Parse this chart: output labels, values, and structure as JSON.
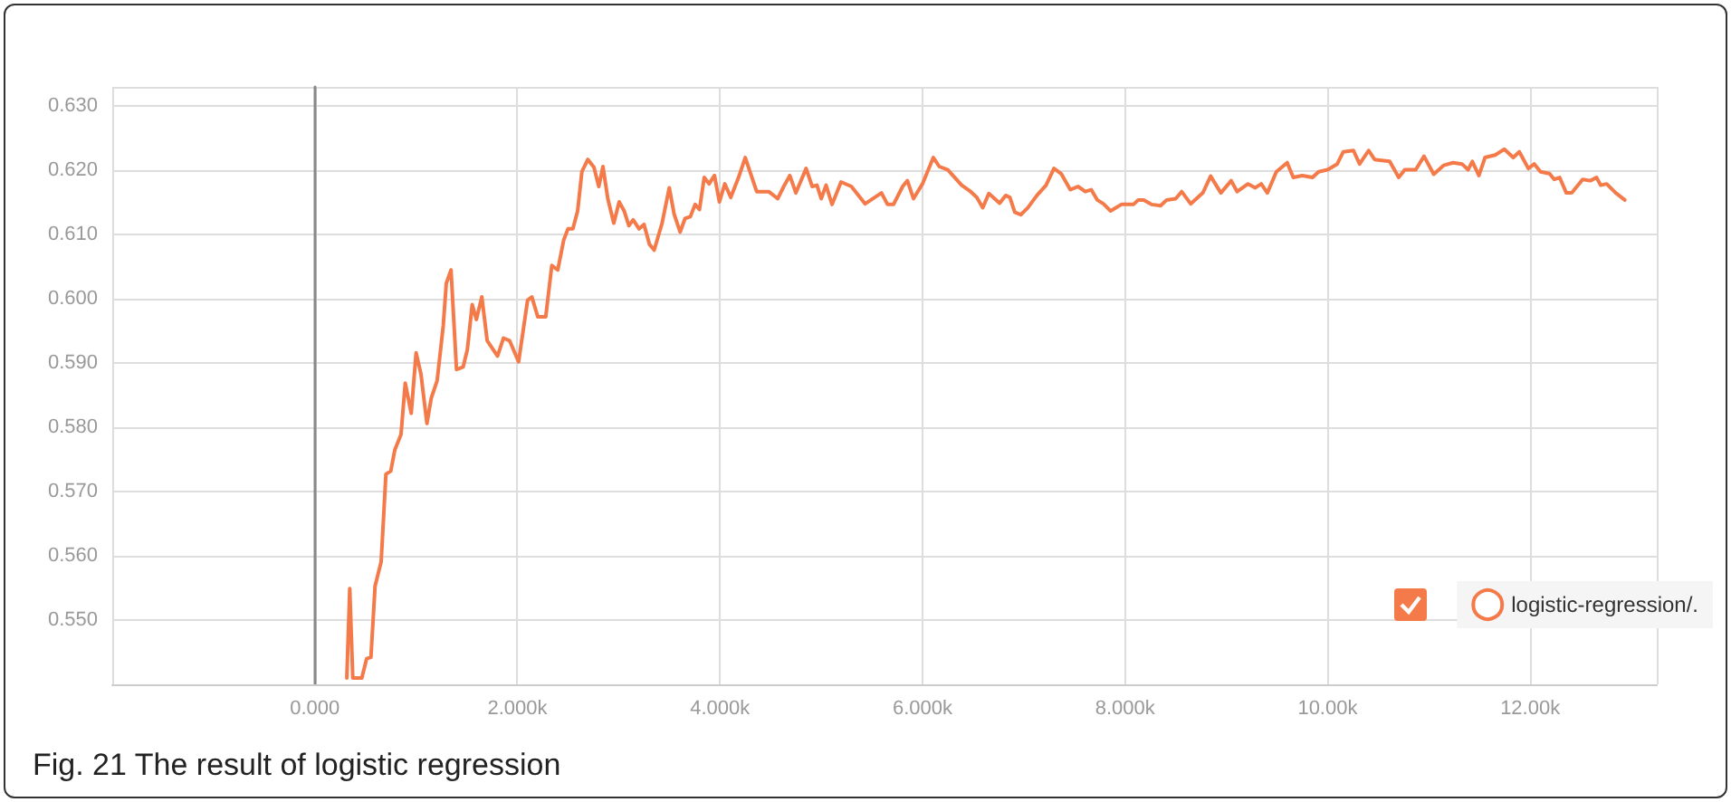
{
  "chart_data": {
    "type": "line",
    "annotations": [
      "Fig. 21 The result of logistic regression"
    ],
    "xlim": [
      -2000,
      13250
    ],
    "ylim": [
      0.54,
      0.633
    ],
    "xticks": [
      {
        "value": 0,
        "label": "0.000"
      },
      {
        "value": 2000,
        "label": "2.000k"
      },
      {
        "value": 4000,
        "label": "4.000k"
      },
      {
        "value": 6000,
        "label": "6.000k"
      },
      {
        "value": 8000,
        "label": "8.000k"
      },
      {
        "value": 10000,
        "label": "10.00k"
      },
      {
        "value": 12000,
        "label": "12.00k"
      }
    ],
    "yticks": [
      {
        "value": 0.55,
        "label": "0.550"
      },
      {
        "value": 0.56,
        "label": "0.560"
      },
      {
        "value": 0.57,
        "label": "0.570"
      },
      {
        "value": 0.58,
        "label": "0.580"
      },
      {
        "value": 0.59,
        "label": "0.590"
      },
      {
        "value": 0.6,
        "label": "0.600"
      },
      {
        "value": 0.61,
        "label": "0.610"
      },
      {
        "value": 0.62,
        "label": "0.620"
      },
      {
        "value": 0.63,
        "label": "0.630"
      }
    ],
    "grid": true,
    "legend": "bottom right",
    "marker": "none",
    "line_style": "solid",
    "series": [
      {
        "name": "logistic-regression/.",
        "color": "#f47a4a",
        "x": [
          316,
          345,
          375,
          464,
          512,
          554,
          595,
          655,
          702,
          750,
          790,
          851,
          893,
          952,
          1000,
          1048,
          1107,
          1149,
          1208,
          1268,
          1298,
          1345,
          1399,
          1464,
          1506,
          1554,
          1595,
          1649,
          1702,
          1804,
          1863,
          1923,
          2012,
          2101,
          2143,
          2202,
          2280,
          2340,
          2399,
          2458,
          2500,
          2548,
          2595,
          2637,
          2696,
          2756,
          2804,
          2845,
          2893,
          2952,
          3005,
          3054,
          3101,
          3143,
          3202,
          3250,
          3304,
          3351,
          3429,
          3500,
          3548,
          3607,
          3655,
          3708,
          3755,
          3798,
          3845,
          3893,
          3946,
          3995,
          4048,
          4107,
          4184,
          4250,
          4363,
          4482,
          4571,
          4630,
          4690,
          4750,
          4851,
          4911,
          4958,
          5000,
          5048,
          5107,
          5196,
          5298,
          5434,
          5595,
          5655,
          5714,
          5804,
          5851,
          5911,
          6000,
          6107,
          6166,
          6250,
          6387,
          6476,
          6536,
          6595,
          6655,
          6762,
          6821,
          6863,
          6911,
          6970,
          7041,
          7130,
          7220,
          7298,
          7369,
          7459,
          7536,
          7607,
          7666,
          7726,
          7786,
          7857,
          7964,
          8083,
          8130,
          8184,
          8262,
          8351,
          8411,
          8500,
          8559,
          8648,
          8768,
          8845,
          8946,
          9048,
          9107,
          9214,
          9286,
          9345,
          9405,
          9494,
          9601,
          9661,
          9750,
          9851,
          9911,
          10000,
          10095,
          10155,
          10255,
          10316,
          10405,
          10464,
          10613,
          10702,
          10762,
          10870,
          10952,
          11048,
          11148,
          11238,
          11327,
          11387,
          11429,
          11494,
          11554,
          11655,
          11744,
          11833,
          11893,
          11982,
          12041,
          12102,
          12191,
          12238,
          12291,
          12357,
          12411,
          12518,
          12595,
          12655,
          12696,
          12755,
          12845,
          12934
        ],
        "values": [
          0.541,
          0.5549,
          0.541,
          0.541,
          0.544,
          0.5442,
          0.5553,
          0.5591,
          0.5727,
          0.5732,
          0.5765,
          0.5789,
          0.5869,
          0.5822,
          0.5916,
          0.5883,
          0.5806,
          0.5845,
          0.5873,
          0.5958,
          0.6024,
          0.6045,
          0.589,
          0.5894,
          0.5921,
          0.5991,
          0.5968,
          0.6003,
          0.5935,
          0.5911,
          0.5939,
          0.5935,
          0.5902,
          0.5998,
          0.6003,
          0.5972,
          0.5972,
          0.6052,
          0.6045,
          0.6092,
          0.6109,
          0.6109,
          0.6137,
          0.6198,
          0.6217,
          0.6205,
          0.6175,
          0.6206,
          0.6156,
          0.6118,
          0.6151,
          0.6137,
          0.6114,
          0.6123,
          0.6109,
          0.6116,
          0.6085,
          0.6076,
          0.6118,
          0.6173,
          0.6132,
          0.6104,
          0.6125,
          0.6128,
          0.6147,
          0.6139,
          0.6189,
          0.6179,
          0.6192,
          0.6151,
          0.6179,
          0.6158,
          0.6189,
          0.622,
          0.6167,
          0.6167,
          0.6156,
          0.6175,
          0.6192,
          0.6165,
          0.6203,
          0.6175,
          0.6177,
          0.6156,
          0.6177,
          0.6147,
          0.6182,
          0.6175,
          0.6148,
          0.6165,
          0.6147,
          0.6147,
          0.6175,
          0.6184,
          0.6156,
          0.6179,
          0.622,
          0.6206,
          0.6201,
          0.6177,
          0.6167,
          0.6158,
          0.6142,
          0.6164,
          0.6149,
          0.6161,
          0.6158,
          0.6135,
          0.6131,
          0.6142,
          0.6161,
          0.6177,
          0.6203,
          0.6195,
          0.617,
          0.6175,
          0.6167,
          0.617,
          0.6154,
          0.6148,
          0.6137,
          0.6147,
          0.6147,
          0.6154,
          0.6154,
          0.6147,
          0.6145,
          0.6154,
          0.6156,
          0.6167,
          0.6148,
          0.6165,
          0.6191,
          0.6165,
          0.6184,
          0.6167,
          0.6179,
          0.6173,
          0.6179,
          0.6165,
          0.6198,
          0.6212,
          0.6189,
          0.6192,
          0.6189,
          0.6198,
          0.6201,
          0.621,
          0.6229,
          0.6231,
          0.621,
          0.6231,
          0.6217,
          0.6214,
          0.6189,
          0.6201,
          0.6201,
          0.6222,
          0.6194,
          0.6208,
          0.6212,
          0.621,
          0.6201,
          0.6214,
          0.6192,
          0.622,
          0.6224,
          0.6233,
          0.622,
          0.6229,
          0.6203,
          0.621,
          0.6198,
          0.6195,
          0.6186,
          0.6189,
          0.6165,
          0.6165,
          0.6186,
          0.6184,
          0.6189,
          0.6177,
          0.6179,
          0.6165,
          0.6154
        ]
      }
    ]
  }
}
